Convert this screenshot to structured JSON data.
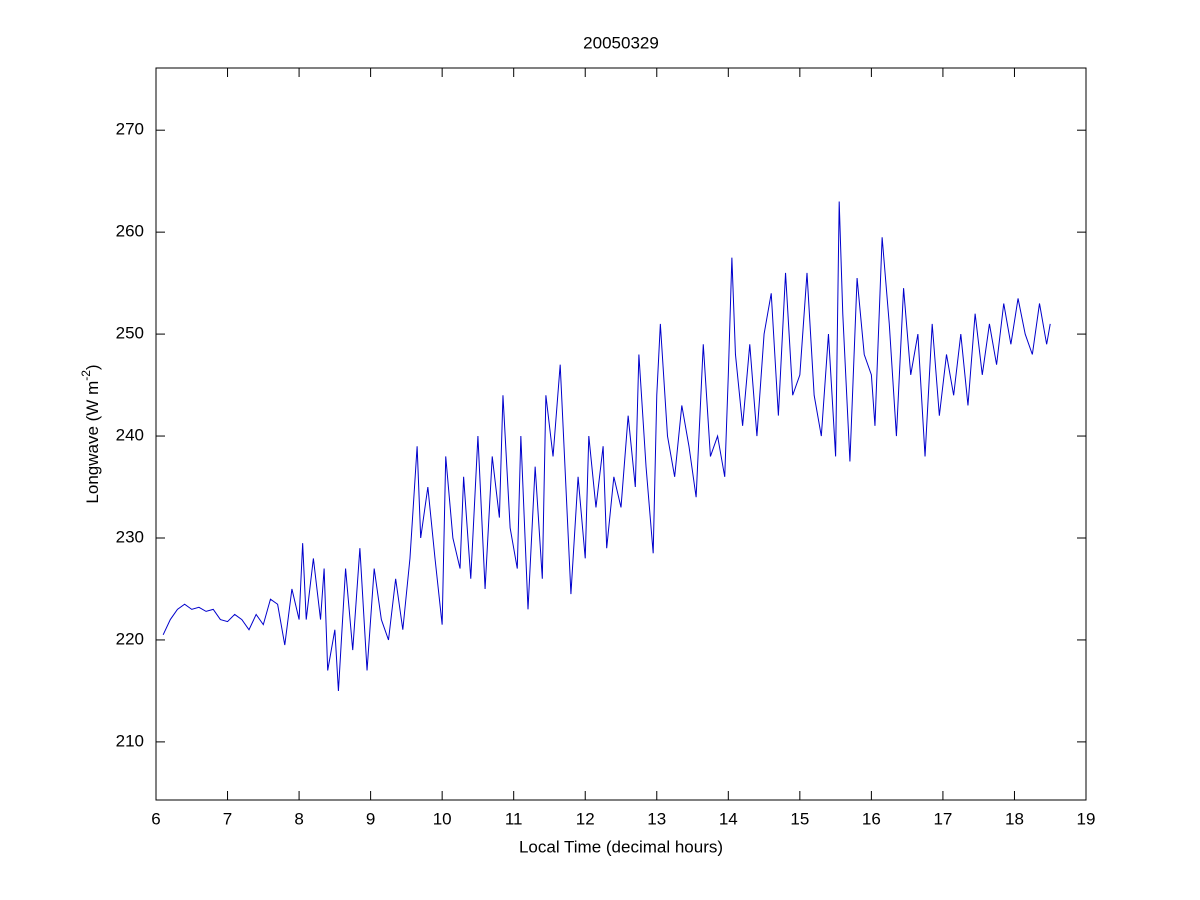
{
  "chart_data": {
    "type": "line",
    "title": "20050329",
    "xlabel": "Local Time (decimal hours)",
    "ylabel": {
      "text": "Longwave (W m",
      "superscript": "-2",
      "suffix": ")"
    },
    "xlim": [
      6,
      19
    ],
    "xticks": [
      6,
      7,
      8,
      9,
      10,
      11,
      12,
      13,
      14,
      15,
      16,
      17,
      18,
      19
    ],
    "ylim": [
      204.3,
      276.1
    ],
    "yticks": [
      210,
      220,
      230,
      240,
      250,
      260,
      270
    ],
    "grid": false,
    "series": [
      {
        "color": "#0000cc",
        "x": [
          6.1,
          6.2,
          6.3,
          6.4,
          6.5,
          6.6,
          6.7,
          6.8,
          6.9,
          7.0,
          7.1,
          7.2,
          7.3,
          7.4,
          7.5,
          7.6,
          7.7,
          7.8,
          7.9,
          8.0,
          8.05,
          8.1,
          8.2,
          8.3,
          8.35,
          8.4,
          8.5,
          8.55,
          8.65,
          8.75,
          8.85,
          8.95,
          9.05,
          9.15,
          9.25,
          9.35,
          9.45,
          9.55,
          9.65,
          9.7,
          9.8,
          9.9,
          10.0,
          10.05,
          10.15,
          10.25,
          10.3,
          10.4,
          10.5,
          10.6,
          10.7,
          10.8,
          10.85,
          10.95,
          11.05,
          11.1,
          11.2,
          11.3,
          11.4,
          11.45,
          11.55,
          11.65,
          11.75,
          11.8,
          11.9,
          12.0,
          12.05,
          12.15,
          12.25,
          12.3,
          12.4,
          12.5,
          12.6,
          12.7,
          12.75,
          12.85,
          12.95,
          13.0,
          13.05,
          13.15,
          13.25,
          13.35,
          13.45,
          13.55,
          13.65,
          13.75,
          13.85,
          13.95,
          14.0,
          14.05,
          14.1,
          14.2,
          14.3,
          14.4,
          14.5,
          14.6,
          14.7,
          14.8,
          14.9,
          15.0,
          15.1,
          15.2,
          15.3,
          15.4,
          15.5,
          15.55,
          15.6,
          15.7,
          15.8,
          15.9,
          16.0,
          16.05,
          16.15,
          16.25,
          16.35,
          16.45,
          16.55,
          16.65,
          16.75,
          16.85,
          16.95,
          17.05,
          17.15,
          17.25,
          17.35,
          17.45,
          17.55,
          17.65,
          17.75,
          17.85,
          17.95,
          18.05,
          18.15,
          18.25,
          18.35,
          18.45,
          18.5
        ],
        "values": [
          220.5,
          222,
          223,
          223.5,
          223,
          223.2,
          222.8,
          223,
          222,
          221.8,
          222.5,
          222,
          221,
          222.5,
          221.5,
          224,
          223.5,
          219.5,
          225,
          222,
          229.5,
          222,
          228,
          222,
          227,
          217,
          221,
          215,
          227,
          219,
          229,
          217,
          227,
          222,
          220,
          226,
          221,
          228,
          239,
          230,
          235,
          228,
          221.5,
          238,
          230,
          227,
          236,
          226,
          240,
          225,
          238,
          232,
          244,
          231,
          227,
          240,
          223,
          237,
          226,
          244,
          238,
          247,
          232,
          224.5,
          236,
          228,
          240,
          233,
          239,
          229,
          236,
          233,
          242,
          235,
          248,
          237,
          228.5,
          244,
          251,
          240,
          236,
          243,
          239,
          234,
          249,
          238,
          240,
          236,
          246,
          257.5,
          248,
          241,
          249,
          240,
          250,
          254,
          242,
          256,
          244,
          246,
          256,
          244,
          240,
          250,
          238,
          263,
          252,
          237.5,
          255.5,
          248,
          246,
          241,
          259.5,
          251,
          240,
          254.5,
          246,
          250,
          238,
          251,
          242,
          248,
          244,
          250,
          243,
          252,
          246,
          251,
          247,
          253,
          249,
          253.5,
          250,
          248,
          253,
          249,
          251
        ]
      }
    ]
  }
}
